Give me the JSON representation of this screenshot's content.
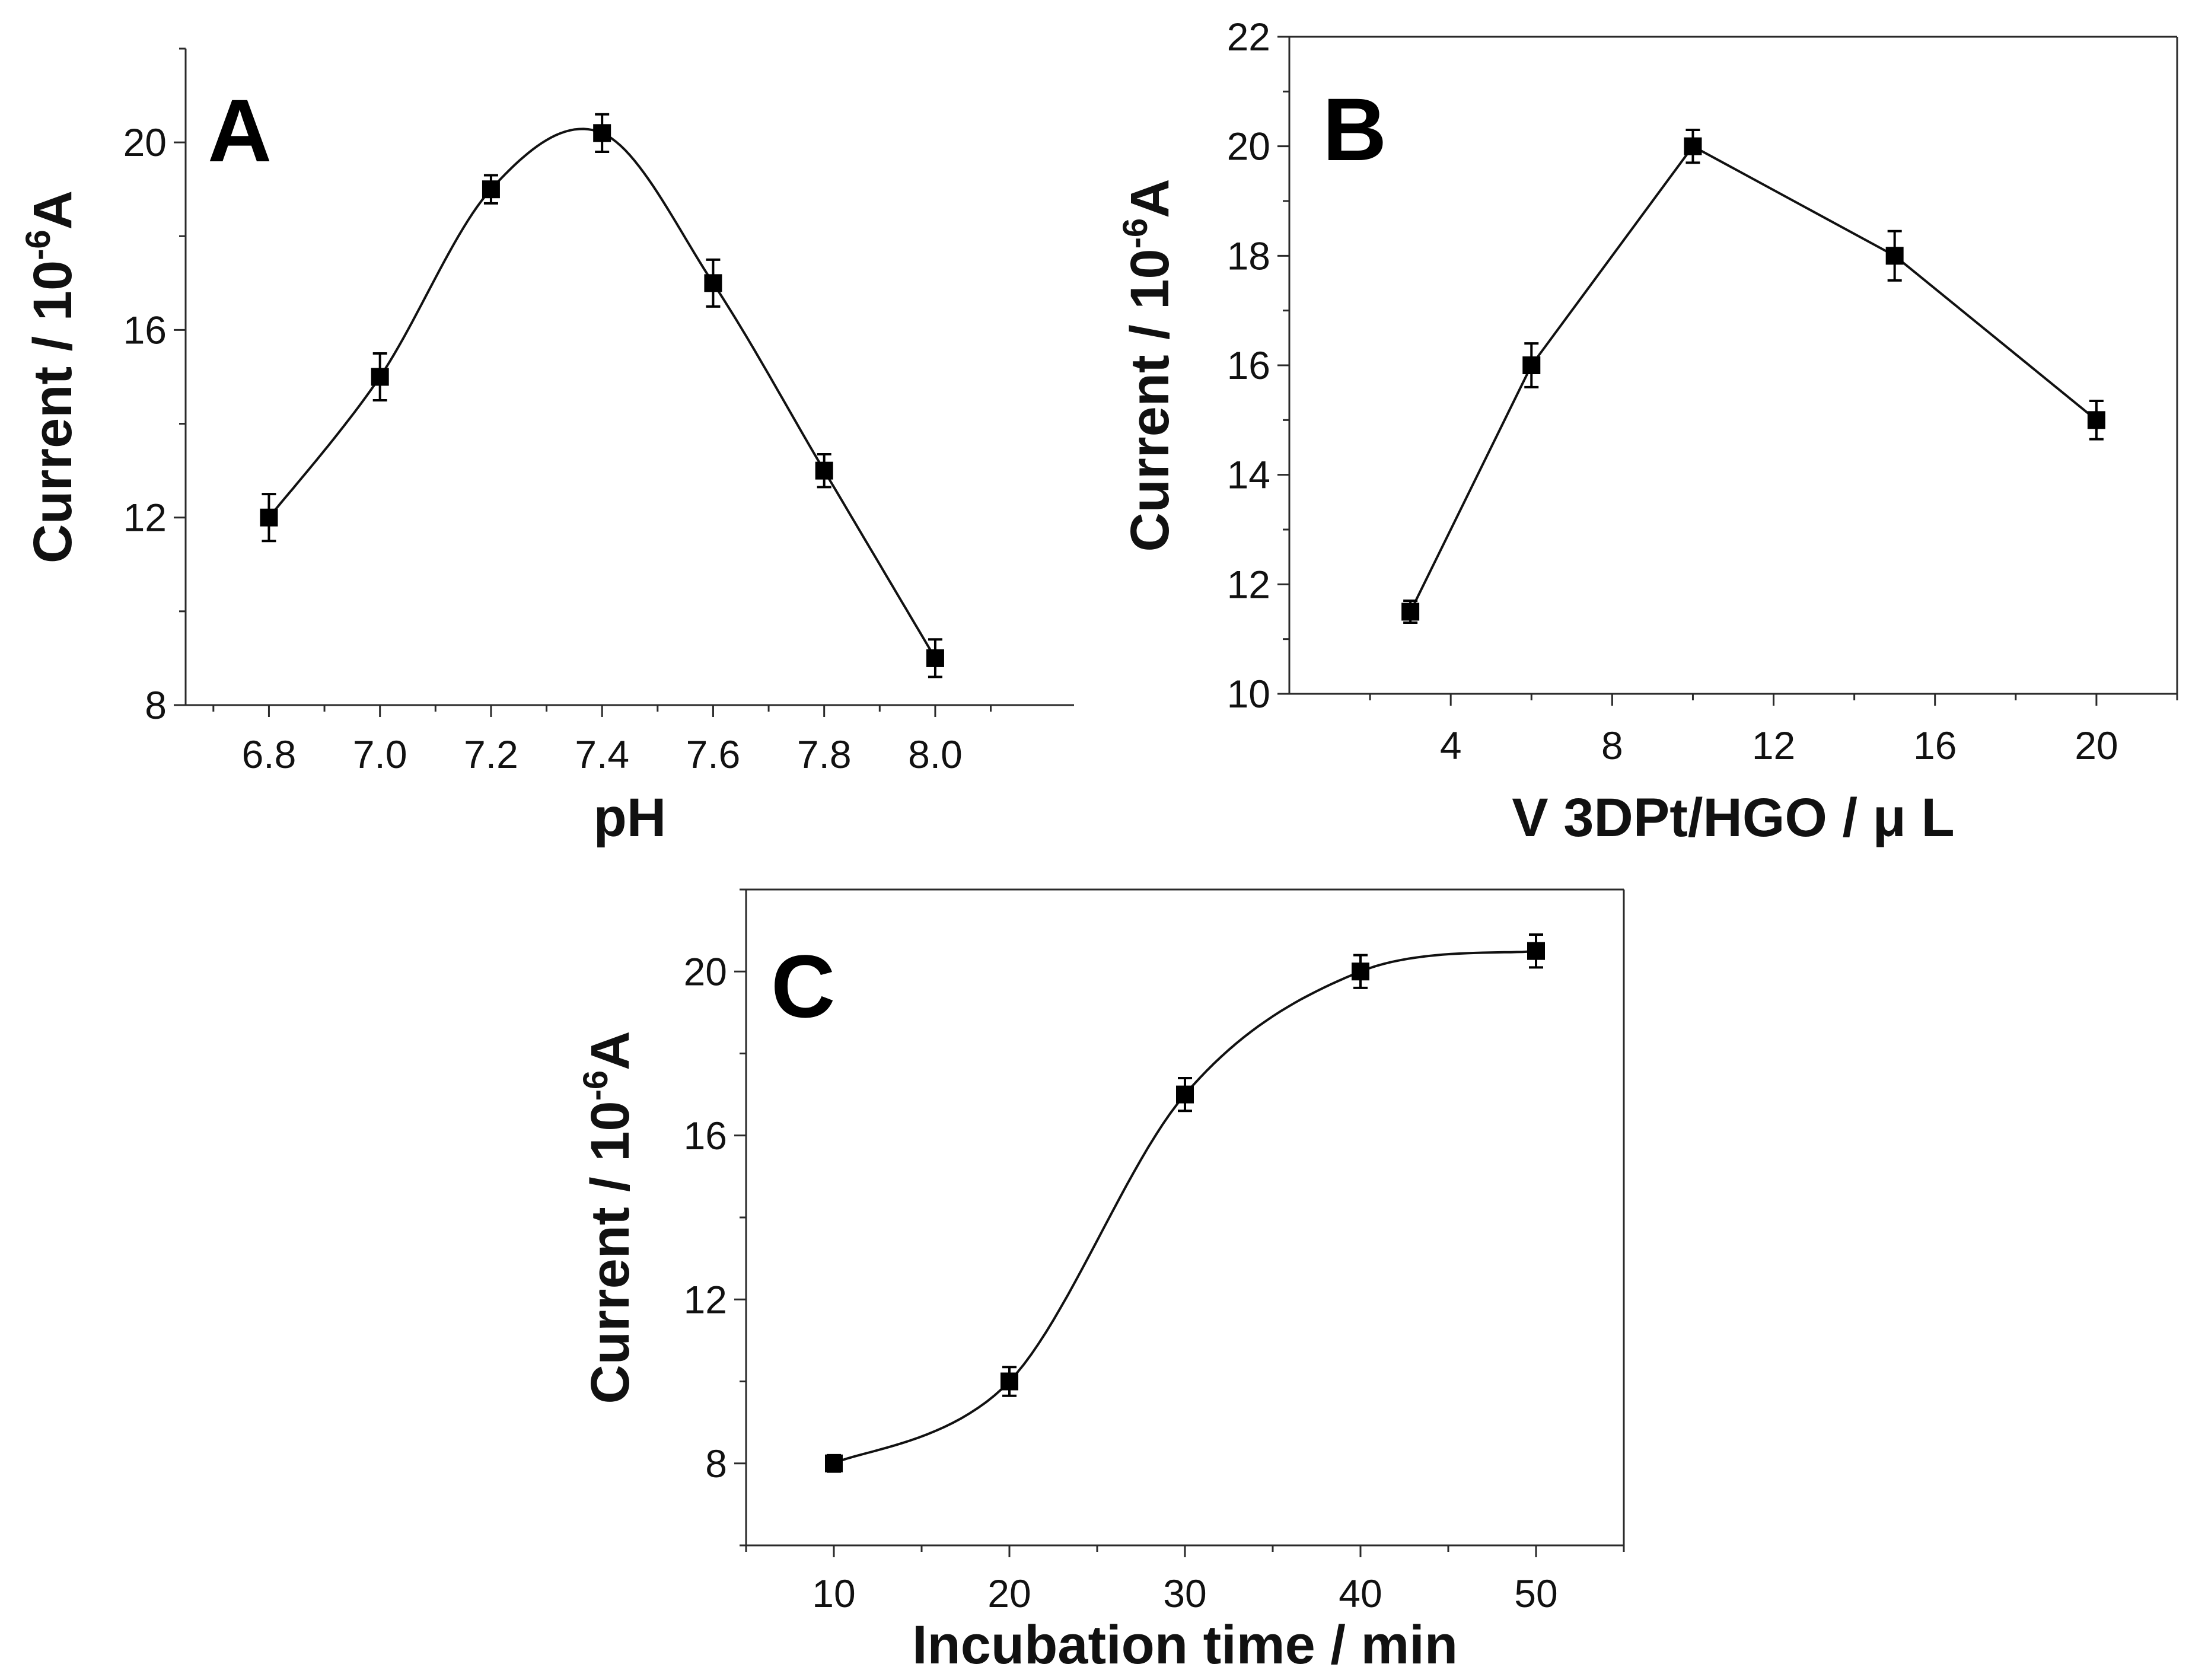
{
  "chart_data": [
    {
      "panel": "A",
      "type": "line",
      "curve": "smooth",
      "xlabel": "pH",
      "ylabel": "Current / 10",
      "ylabel_sup": "-6",
      "ylabel_unit": "A",
      "xlim": [
        6.65,
        8.25
      ],
      "ylim": [
        8,
        22
      ],
      "xticks": [
        6.8,
        7.0,
        7.2,
        7.4,
        7.6,
        7.8,
        8.0
      ],
      "xtick_labels": [
        "6.8",
        "7.0",
        "7.2",
        "7.4",
        "7.6",
        "7.8",
        "8.0"
      ],
      "yticks": [
        8,
        12,
        16,
        20
      ],
      "ytick_labels": [
        "8",
        "12",
        "16",
        "20"
      ],
      "x": [
        6.8,
        7.0,
        7.2,
        7.4,
        7.6,
        7.8,
        8.0
      ],
      "y": [
        12,
        15,
        19,
        20.2,
        17,
        13,
        9
      ],
      "err": [
        0.5,
        0.5,
        0.3,
        0.4,
        0.5,
        0.35,
        0.4
      ]
    },
    {
      "panel": "B",
      "type": "line",
      "curve": "straight",
      "xlabel": "V 3DPt/HGO /  μ L",
      "ylabel": "Current / 10",
      "ylabel_sup": "-6",
      "ylabel_unit": "A",
      "xlim": [
        0,
        22
      ],
      "ylim": [
        10,
        22
      ],
      "xticks": [
        4,
        8,
        12,
        16,
        20
      ],
      "xtick_labels": [
        "4",
        "8",
        "12",
        "16",
        "20"
      ],
      "yticks": [
        10,
        12,
        14,
        16,
        18,
        20,
        22
      ],
      "ytick_labels": [
        "10",
        "12",
        "14",
        "16",
        "18",
        "20",
        "22"
      ],
      "x": [
        3,
        6,
        10,
        15,
        20
      ],
      "y": [
        11.5,
        16,
        20,
        18,
        15
      ],
      "err": [
        0.2,
        0.4,
        0.3,
        0.45,
        0.35
      ]
    },
    {
      "panel": "C",
      "type": "line",
      "curve": "sigmoid",
      "xlabel": "Incubation time / min",
      "ylabel": "Current / 10",
      "ylabel_sup": "-6",
      "ylabel_unit": "A",
      "xlim": [
        5,
        55
      ],
      "ylim": [
        6,
        22
      ],
      "xticks": [
        10,
        20,
        30,
        40,
        50
      ],
      "xtick_labels": [
        "10",
        "20",
        "30",
        "40",
        "50"
      ],
      "yticks": [
        8,
        12,
        16,
        20
      ],
      "ytick_labels": [
        "8",
        "12",
        "16",
        "20"
      ],
      "x": [
        10,
        20,
        30,
        40,
        50
      ],
      "y": [
        8,
        10,
        17,
        20,
        20.5
      ],
      "err": [
        0.2,
        0.35,
        0.4,
        0.4,
        0.4
      ]
    }
  ]
}
